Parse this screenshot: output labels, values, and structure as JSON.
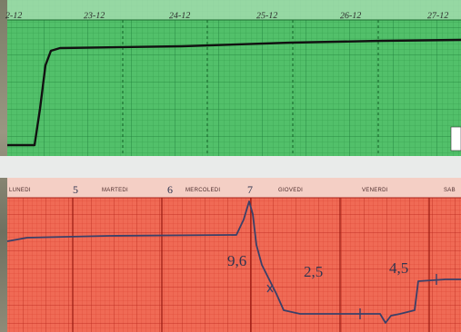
{
  "upper_chart": {
    "date_labels": [
      "2-12",
      "23-12",
      "24-12",
      "25-12",
      "26-12",
      "27-12"
    ],
    "line_color": "#111111",
    "paper_color": "#52c06a"
  },
  "lower_chart": {
    "day_labels": [
      "LUNEDI",
      "MARTEDI",
      "MERCOLEDI",
      "GIOVEDI",
      "VENERDI",
      "SAB"
    ],
    "day_numbers": [
      "5",
      "6",
      "7"
    ],
    "annotations": [
      "9,6",
      "2,5",
      "4,5"
    ],
    "line_color": "#3a4068",
    "paper_color": "#f06a55"
  }
}
